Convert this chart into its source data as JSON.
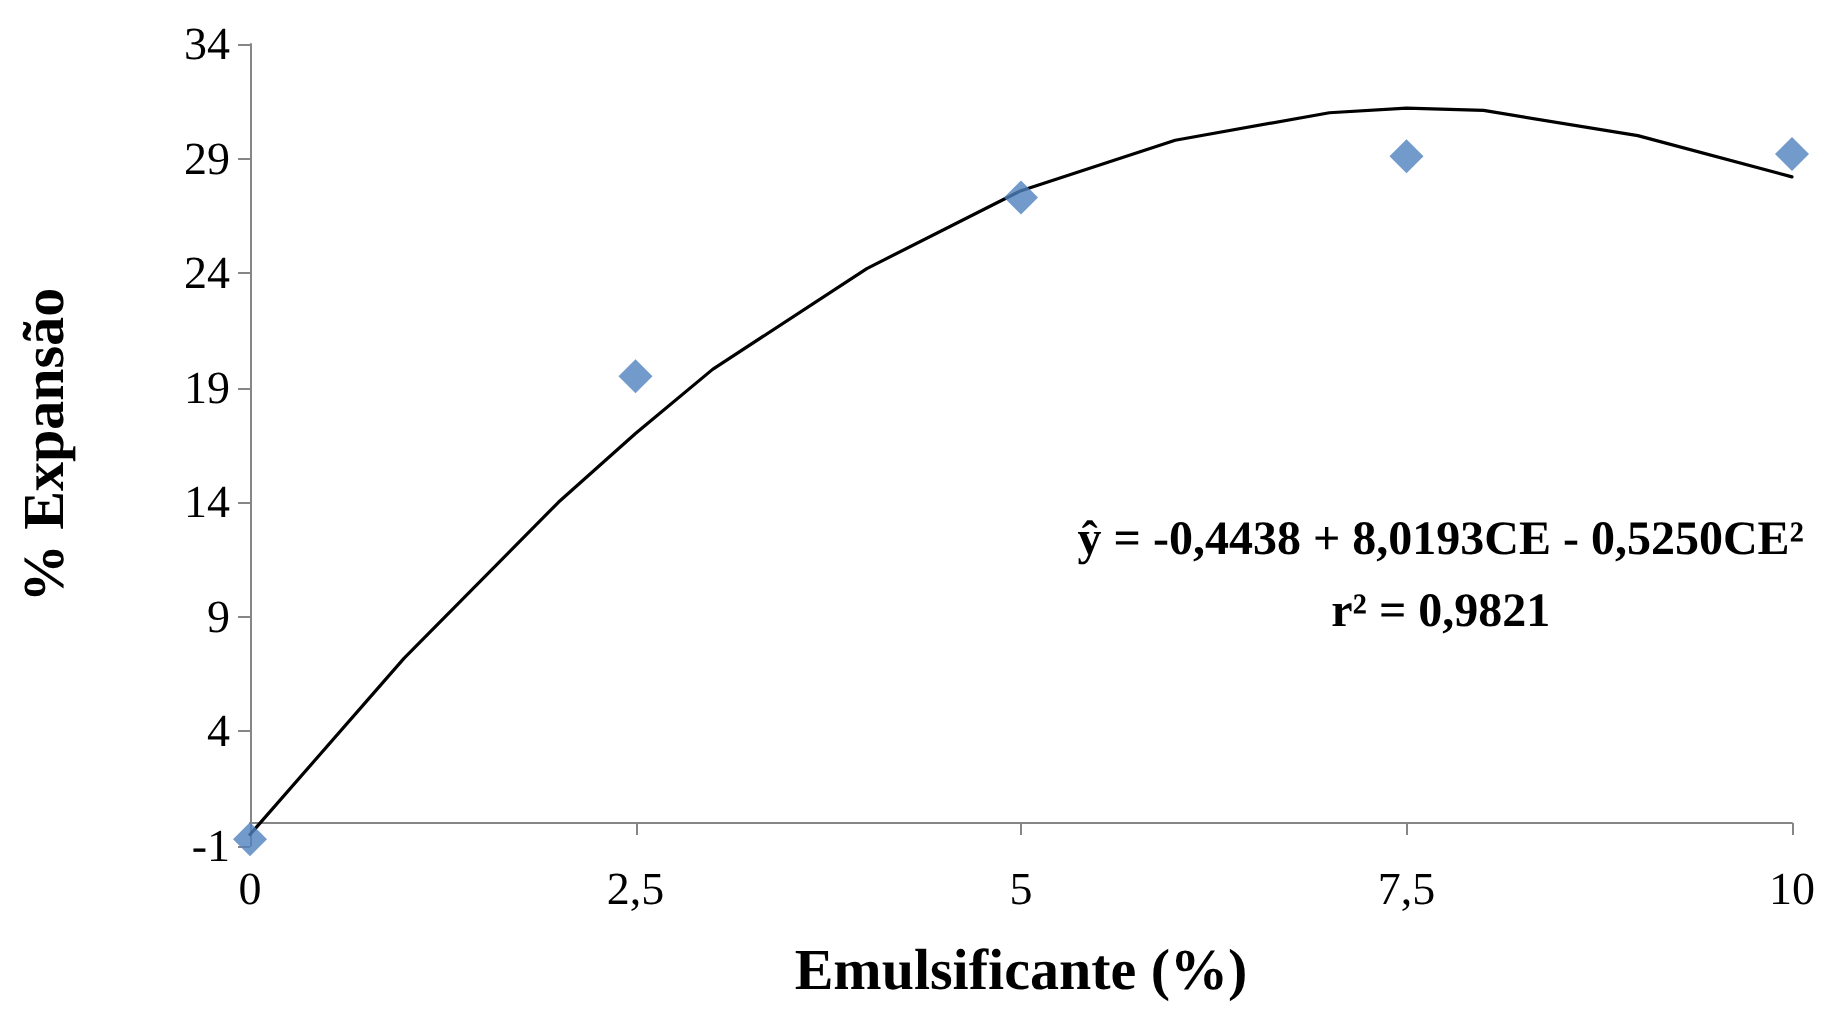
{
  "chart_data": {
    "type": "scatter",
    "xlabel": "Emulsificante (%)",
    "ylabel": "% Expansão",
    "x": [
      0,
      2.5,
      5,
      7.5,
      10
    ],
    "series": [
      {
        "type": "scatter",
        "color": "#4f81bd",
        "marker": "diamond",
        "values": [
          -0.7,
          19.5,
          27.3,
          29.1,
          29.2
        ]
      },
      {
        "type": "line",
        "color": "#000000",
        "marker": "none",
        "line_style": "solid",
        "x": [
          0,
          1,
          2,
          2.5,
          3,
          4,
          5,
          6,
          7,
          7.5,
          8,
          9,
          10
        ],
        "values": [
          -0.5,
          7.2,
          14.0,
          17.0,
          19.8,
          24.2,
          27.6,
          29.8,
          31.0,
          31.2,
          31.1,
          30.0,
          28.2
        ]
      }
    ],
    "xlim": [
      0,
      10
    ],
    "xticks": [
      0,
      {
        "value": 2.5,
        "label": "2,5"
      },
      5,
      {
        "value": 7.5,
        "label": "7,5"
      },
      10
    ],
    "ylim": [
      -1,
      34
    ],
    "yticks": [
      -1,
      4,
      9,
      14,
      19,
      24,
      29,
      34
    ],
    "grid": false,
    "annotations": [
      "ŷ = -0,4438 + 8,0193CE - 0,5250CE²",
      "r² = 0,9821"
    ]
  }
}
